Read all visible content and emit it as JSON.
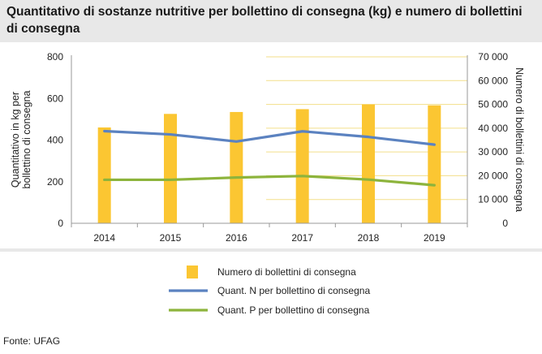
{
  "title": "Quantitativo di sostanze nutritive per bollettino di consegna (kg) e numero di bollettini di consegna",
  "source": "Fonte: UFAG",
  "colors": {
    "bars": "#fbc632",
    "line_n": "#5b82c0",
    "line_p": "#8db43c",
    "grid": "#f3df8a",
    "axis": "#999999"
  },
  "chart_data": {
    "type": "bar+line",
    "categories": [
      "2014",
      "2015",
      "2016",
      "2017",
      "2018",
      "2019"
    ],
    "y_left": {
      "label": "Quantitativo in kg per bollettino di consegna",
      "lim": [
        0,
        800
      ],
      "ticks": [
        "0",
        "200",
        "400",
        "600",
        "800"
      ]
    },
    "y_right": {
      "label": "Numero di bollettini di consegna",
      "lim": [
        0,
        70000
      ],
      "ticks": [
        "0",
        "10 000",
        "20 000",
        "30 000",
        "40 000",
        "50 000",
        "60 000",
        "70 000"
      ]
    },
    "series": [
      {
        "name": "Numero di bollettini di consegna",
        "type": "bar",
        "axis": "right",
        "values": [
          40300,
          46000,
          46800,
          48000,
          50000,
          49600
        ]
      },
      {
        "name": "Quant. N per bollettino di consegna",
        "type": "line",
        "axis": "left",
        "values": [
          443,
          427,
          393,
          442,
          415,
          378
        ]
      },
      {
        "name": "Quant. P per bollettino di consegna",
        "type": "line",
        "axis": "left",
        "values": [
          209,
          209,
          220,
          227,
          210,
          183
        ]
      }
    ],
    "legend_position": "bottom-center"
  }
}
